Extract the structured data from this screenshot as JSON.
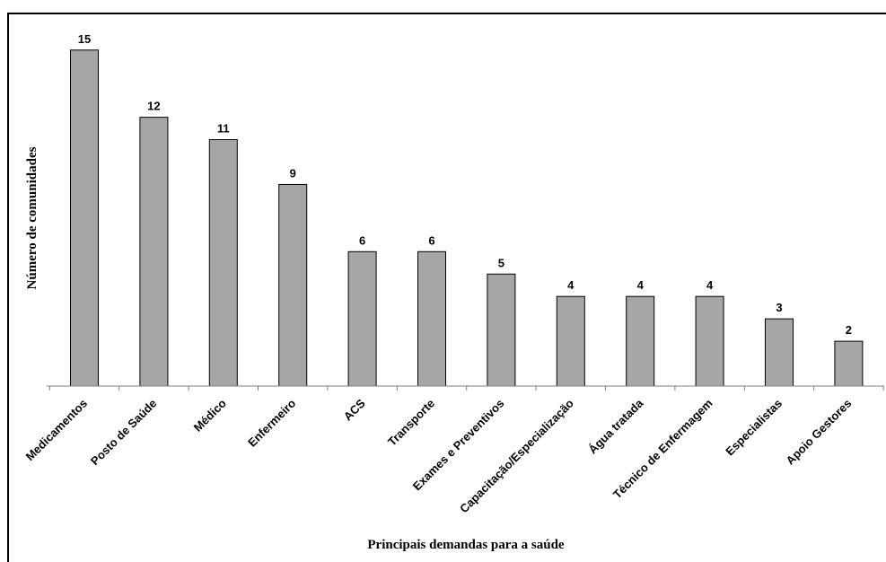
{
  "chart_data": {
    "type": "bar",
    "title": "",
    "xlabel": "Principais demandas para a saúde",
    "ylabel": "Número de comunidades",
    "ylim": [
      0,
      15
    ],
    "grid": false,
    "legend": "none",
    "bar_color": "#a6a6a6",
    "categories": [
      "Medicamentos",
      "Posto de Saúde",
      "Médico",
      "Enfermeiro",
      "ACS",
      "Transporte",
      "Exames e Preventivos",
      "Capacitação/Especialização",
      "Água tratada",
      "Técnico de Enfermagem",
      "Especialistas",
      "Apoio Gestores"
    ],
    "values": [
      15,
      12,
      11,
      9,
      6,
      6,
      5,
      4,
      4,
      4,
      3,
      2
    ]
  }
}
